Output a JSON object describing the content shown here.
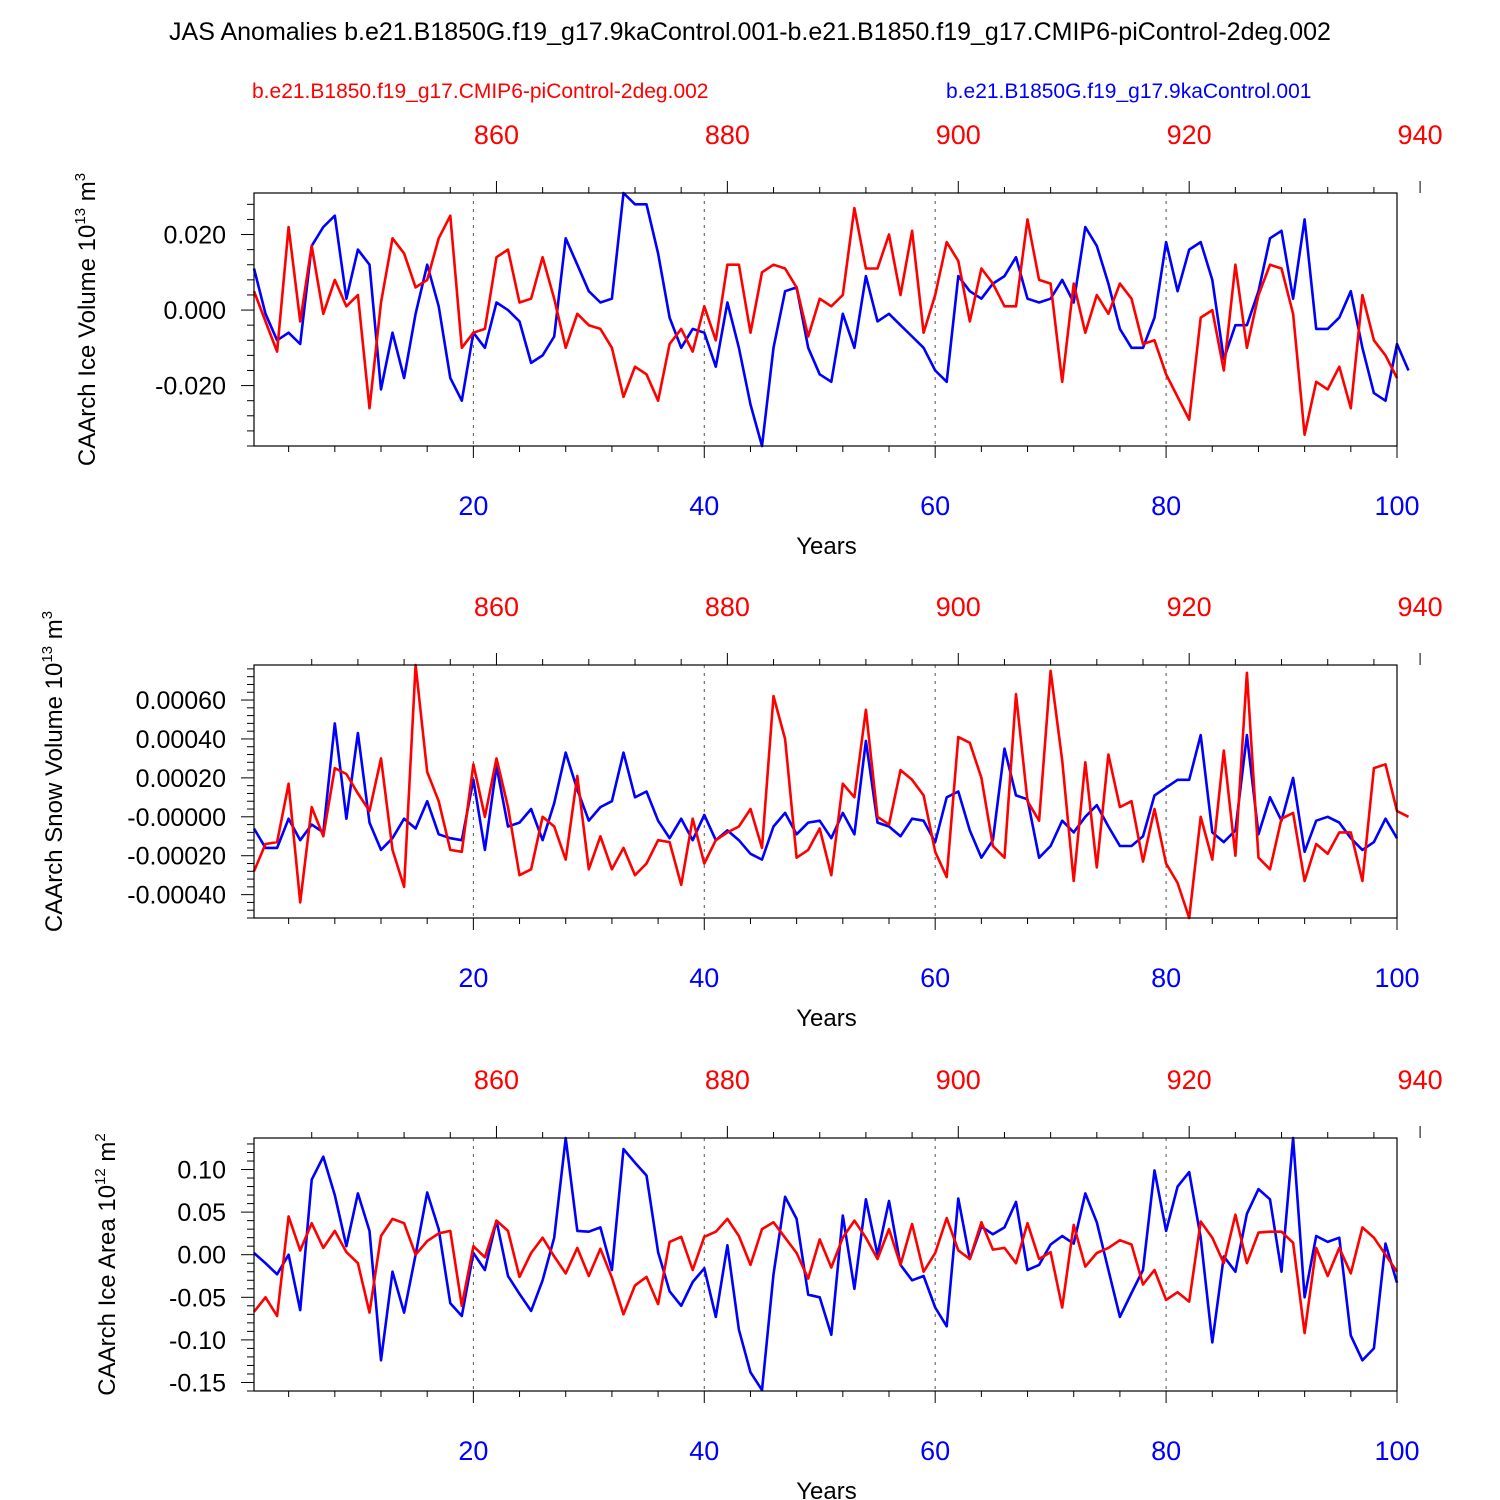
{
  "title": "JAS Anomalies b.e21.B1850G.f19_g17.9kaControl.001-b.e21.B1850.f19_g17.CMIP6-piControl-2deg.002",
  "legend": {
    "red": "b.e21.B1850.f19_g17.CMIP6-piControl-2deg.002",
    "blue": "b.e21.B1850G.f19_g17.9kaControl.001"
  },
  "colors": {
    "red": "#ff0000",
    "blue": "#0000ff",
    "axis": "#000000",
    "grid": "#555555"
  },
  "chart_data": [
    {
      "type": "line",
      "ylabel": "CAArch Ice Volume 10^13 m^3",
      "ylabel_base": "CAArch Ice Volume 10",
      "ylabel_exp": "13",
      "ylabel_unit": "m",
      "ylabel_unit_exp": "3",
      "xlabel": "Years",
      "xlim": [
        1,
        100
      ],
      "ylim": [
        -0.036,
        0.031
      ],
      "xticks_bottom": [
        "20",
        "40",
        "60",
        "80",
        "100"
      ],
      "xticks_top": [
        "860",
        "880",
        "900",
        "920",
        "940"
      ],
      "yticks": [
        "0.020",
        "0.000",
        "-0.020"
      ],
      "ytick_values": [
        0.02,
        0.0,
        -0.02
      ],
      "series": [
        {
          "name": "b.e21.B1850.f19_g17.CMIP6-piControl-2deg.002",
          "color": "#ff0000",
          "values": [
            0.005,
            -0.003,
            -0.011,
            0.022,
            -0.003,
            0.017,
            -0.001,
            0.008,
            0.001,
            0.004,
            -0.026,
            0.002,
            0.019,
            0.015,
            0.006,
            0.008,
            0.019,
            0.025,
            -0.01,
            -0.006,
            -0.005,
            0.014,
            0.016,
            0.002,
            0.003,
            0.014,
            0.003,
            -0.01,
            -0.001,
            -0.004,
            -0.005,
            -0.01,
            -0.023,
            -0.015,
            -0.017,
            -0.024,
            -0.009,
            -0.005,
            -0.011,
            0.001,
            -0.008,
            0.012,
            0.012,
            -0.006,
            0.01,
            0.012,
            0.011,
            0.006,
            -0.007,
            0.003,
            0.001,
            0.004,
            0.027,
            0.011,
            0.011,
            0.02,
            0.004,
            0.021,
            -0.006,
            0.004,
            0.018,
            0.013,
            -0.003,
            0.011,
            0.007,
            0.001,
            0.001,
            0.024,
            0.008,
            0.007,
            -0.019,
            0.007,
            -0.006,
            0.004,
            -0.001,
            0.007,
            0.003,
            -0.009,
            -0.008,
            -0.017,
            -0.023,
            -0.029,
            -0.002,
            0.0,
            -0.016,
            0.012,
            -0.01,
            0.004,
            0.012,
            0.011,
            -0.001,
            -0.033,
            -0.019,
            -0.021,
            -0.015,
            -0.026,
            0.004,
            -0.008,
            -0.012,
            -0.018
          ]
        },
        {
          "name": "b.e21.B1850G.f19_g17.9kaControl.001",
          "color": "#0000ff",
          "values": [
            0.011,
            -0.001,
            -0.008,
            -0.006,
            -0.009,
            0.017,
            0.022,
            0.025,
            0.003,
            0.016,
            0.012,
            -0.021,
            -0.006,
            -0.018,
            -0.001,
            0.012,
            0.001,
            -0.018,
            -0.024,
            -0.006,
            -0.01,
            0.002,
            0.0,
            -0.003,
            -0.014,
            -0.012,
            -0.007,
            0.019,
            0.012,
            0.005,
            0.002,
            0.003,
            0.031,
            0.028,
            0.028,
            0.015,
            -0.002,
            -0.01,
            -0.005,
            -0.006,
            -0.015,
            0.002,
            -0.01,
            -0.025,
            -0.036,
            -0.01,
            0.005,
            0.006,
            -0.01,
            -0.017,
            -0.019,
            -0.001,
            -0.01,
            0.009,
            -0.003,
            -0.001,
            -0.004,
            -0.007,
            -0.01,
            -0.016,
            -0.019,
            0.009,
            0.005,
            0.003,
            0.007,
            0.009,
            0.014,
            0.003,
            0.002,
            0.003,
            0.008,
            0.002,
            0.022,
            0.017,
            0.007,
            -0.005,
            -0.01,
            -0.01,
            -0.002,
            0.018,
            0.005,
            0.016,
            0.018,
            0.008,
            -0.013,
            -0.004,
            -0.004,
            0.005,
            0.019,
            0.021,
            0.003,
            0.024,
            -0.005,
            -0.005,
            -0.002,
            0.005,
            -0.01,
            -0.022,
            -0.024,
            -0.009,
            -0.016
          ]
        }
      ]
    },
    {
      "type": "line",
      "ylabel": "CAArch Snow Volume 10^13 m^3",
      "ylabel_base": "CAArch Snow Volume 10",
      "ylabel_exp": "13",
      "ylabel_unit": "m",
      "ylabel_unit_exp": "3",
      "xlabel": "Years",
      "xlim": [
        1,
        100
      ],
      "ylim": [
        -0.00052,
        0.00078
      ],
      "xticks_bottom": [
        "20",
        "40",
        "60",
        "80",
        "100"
      ],
      "xticks_top": [
        "860",
        "880",
        "900",
        "920",
        "940"
      ],
      "yticks": [
        "0.00060",
        "0.00040",
        "0.00020",
        "-0.00000",
        "-0.00020",
        "-0.00040"
      ],
      "ytick_values": [
        0.0006,
        0.0004,
        0.0002,
        0.0,
        -0.0002,
        -0.0004
      ],
      "series": [
        {
          "name": "b.e21.B1850.f19_g17.CMIP6-piControl-2deg.002",
          "color": "#ff0000",
          "values": [
            -0.00028,
            -0.00014,
            -0.00013,
            0.00017,
            -0.00044,
            5e-05,
            -0.0001,
            0.00025,
            0.00022,
            0.00012,
            3e-05,
            0.0003,
            -0.00017,
            -0.00036,
            0.00078,
            0.00023,
            8e-05,
            -0.00017,
            -0.00018,
            0.00027,
            0.0,
            0.0003,
            5e-05,
            -0.0003,
            -0.00027,
            0.0,
            -5e-05,
            -0.00022,
            0.00021,
            -0.00027,
            -0.0001,
            -0.00027,
            -0.00016,
            -0.0003,
            -0.00024,
            -0.00012,
            -0.00013,
            -0.00035,
            -1e-05,
            -0.00024,
            -0.00012,
            -8e-05,
            -5e-05,
            4e-05,
            -0.00016,
            0.00062,
            0.0004,
            -0.00021,
            -0.00017,
            -6e-05,
            -0.0003,
            0.00017,
            0.0001,
            0.00055,
            0.0,
            -4e-05,
            0.00024,
            0.00019,
            0.00011,
            -0.00018,
            -0.00031,
            0.00041,
            0.00038,
            0.0002,
            -0.00015,
            -0.00021,
            0.00063,
            8e-05,
            -2e-05,
            0.00075,
            0.00029,
            -0.00033,
            0.00028,
            -0.00026,
            0.00032,
            5e-05,
            8e-05,
            -0.00023,
            4e-05,
            -0.00024,
            -0.00034,
            -0.00052,
            0.0,
            -0.00022,
            0.00034,
            -0.0002,
            0.00074,
            -0.00021,
            -0.00027,
            -1e-05,
            2e-05,
            -0.00033,
            -0.00014,
            -0.00019,
            -8e-05,
            -8e-05,
            -0.00033,
            0.00025,
            0.00027,
            3e-05,
            0.0
          ]
        },
        {
          "name": "b.e21.B1850G.f19_g17.9kaControl.001",
          "color": "#0000ff",
          "values": [
            -6e-05,
            -0.00016,
            -0.00016,
            -1e-05,
            -0.00012,
            -4e-05,
            -8e-05,
            0.00048,
            -1e-05,
            0.00043,
            -3e-05,
            -0.00017,
            -0.00011,
            -1e-05,
            -6e-05,
            8e-05,
            -9e-05,
            -0.00011,
            -0.00012,
            0.00019,
            -0.00017,
            0.00026,
            -5e-05,
            -3e-05,
            4e-05,
            -0.00012,
            7e-05,
            0.00033,
            0.00014,
            -2e-05,
            5e-05,
            8e-05,
            0.00033,
            0.0001,
            0.00013,
            -2e-05,
            -0.00011,
            -1e-05,
            -0.00012,
            1e-05,
            -0.00012,
            -7e-05,
            -0.00012,
            -0.00019,
            -0.00022,
            -5e-05,
            2e-05,
            -9e-05,
            -3e-05,
            -2e-05,
            -0.00011,
            2e-05,
            -9e-05,
            0.00039,
            -3e-05,
            -5e-05,
            -0.0001,
            -1e-05,
            -2e-05,
            -0.00013,
            0.0001,
            0.00013,
            -7e-05,
            -0.00021,
            -0.00012,
            0.00035,
            0.00011,
            9e-05,
            -0.00021,
            -0.00015,
            -2e-05,
            -8e-05,
            0.0,
            6e-05,
            -5e-05,
            -0.00015,
            -0.00015,
            -0.0001,
            0.00011,
            0.00015,
            0.00019,
            0.00019,
            0.00042,
            -8e-05,
            -0.00013,
            -7e-05,
            0.00042,
            -9e-05,
            0.0001,
            -2e-05,
            0.0002,
            -0.00018,
            -2e-05,
            0.0,
            -3e-05,
            -0.00011,
            -0.00017,
            -0.00013,
            -1e-05,
            -0.00011
          ]
        }
      ]
    },
    {
      "type": "line",
      "ylabel": "CAArch Ice Area 10^12 m^2",
      "ylabel_base": "CAArch Ice Area 10",
      "ylabel_exp": "12",
      "ylabel_unit": "m",
      "ylabel_unit_exp": "2",
      "xlabel": "Years",
      "xlim": [
        1,
        100
      ],
      "ylim": [
        -0.16,
        0.137
      ],
      "xticks_bottom": [
        "20",
        "40",
        "60",
        "80",
        "100"
      ],
      "xticks_top": [
        "860",
        "880",
        "900",
        "920",
        "940"
      ],
      "yticks": [
        "0.10",
        "0.05",
        "0.00",
        "-0.05",
        "-0.10",
        "-0.15"
      ],
      "ytick_values": [
        0.1,
        0.05,
        0.0,
        -0.05,
        -0.1,
        -0.15
      ],
      "series": [
        {
          "name": "b.e21.B1850.f19_g17.CMIP6-piControl-2deg.002",
          "color": "#ff0000",
          "values": [
            -0.067,
            -0.05,
            -0.072,
            0.045,
            0.005,
            0.037,
            0.008,
            0.028,
            0.003,
            -0.01,
            -0.068,
            0.022,
            0.042,
            0.037,
            0.0,
            0.016,
            0.025,
            0.028,
            -0.06,
            0.01,
            -0.003,
            0.04,
            0.028,
            -0.026,
            0.002,
            0.02,
            -0.002,
            -0.022,
            0.008,
            -0.025,
            0.007,
            -0.027,
            -0.07,
            -0.036,
            -0.026,
            -0.058,
            0.015,
            0.021,
            -0.018,
            0.021,
            0.027,
            0.042,
            0.022,
            -0.012,
            0.03,
            0.038,
            0.02,
            0.002,
            -0.028,
            0.018,
            -0.015,
            0.02,
            0.04,
            0.02,
            -0.005,
            0.03,
            -0.012,
            0.036,
            -0.02,
            0.002,
            0.043,
            0.005,
            -0.005,
            0.038,
            0.006,
            0.008,
            -0.01,
            0.037,
            -0.005,
            0.003,
            -0.062,
            0.035,
            -0.014,
            0.002,
            0.008,
            0.017,
            0.012,
            -0.035,
            -0.018,
            -0.053,
            -0.044,
            -0.055,
            0.039,
            0.02,
            -0.01,
            0.047,
            -0.01,
            0.026,
            0.027,
            0.027,
            0.014,
            -0.092,
            0.008,
            -0.025,
            0.008,
            -0.022,
            0.032,
            0.02,
            0.0,
            -0.02
          ]
        },
        {
          "name": "b.e21.B1850G.f19_g17.9kaControl.001",
          "color": "#0000ff",
          "values": [
            0.002,
            -0.01,
            -0.023,
            0.0,
            -0.065,
            0.088,
            0.115,
            0.07,
            0.01,
            0.072,
            0.028,
            -0.124,
            -0.02,
            -0.068,
            0.0,
            0.073,
            0.03,
            -0.057,
            -0.072,
            0.002,
            -0.018,
            0.04,
            -0.025,
            -0.046,
            -0.066,
            -0.03,
            0.02,
            0.137,
            0.028,
            0.027,
            0.032,
            -0.018,
            0.124,
            0.108,
            0.093,
            0.003,
            -0.043,
            -0.06,
            -0.032,
            -0.016,
            -0.073,
            0.011,
            -0.088,
            -0.138,
            -0.159,
            -0.023,
            0.068,
            0.042,
            -0.047,
            -0.05,
            -0.094,
            0.046,
            -0.04,
            0.065,
            0.0,
            0.063,
            -0.012,
            -0.03,
            -0.025,
            -0.062,
            -0.084,
            0.066,
            -0.005,
            0.033,
            0.024,
            0.032,
            0.062,
            -0.018,
            -0.012,
            0.012,
            0.022,
            0.013,
            0.072,
            0.038,
            -0.018,
            -0.073,
            -0.045,
            -0.018,
            0.099,
            0.028,
            0.08,
            0.097,
            0.02,
            -0.103,
            -0.002,
            -0.02,
            0.048,
            0.077,
            0.065,
            -0.02,
            0.137,
            -0.05,
            0.022,
            0.015,
            0.02,
            -0.095,
            -0.124,
            -0.11,
            0.013,
            -0.033
          ]
        }
      ]
    }
  ]
}
